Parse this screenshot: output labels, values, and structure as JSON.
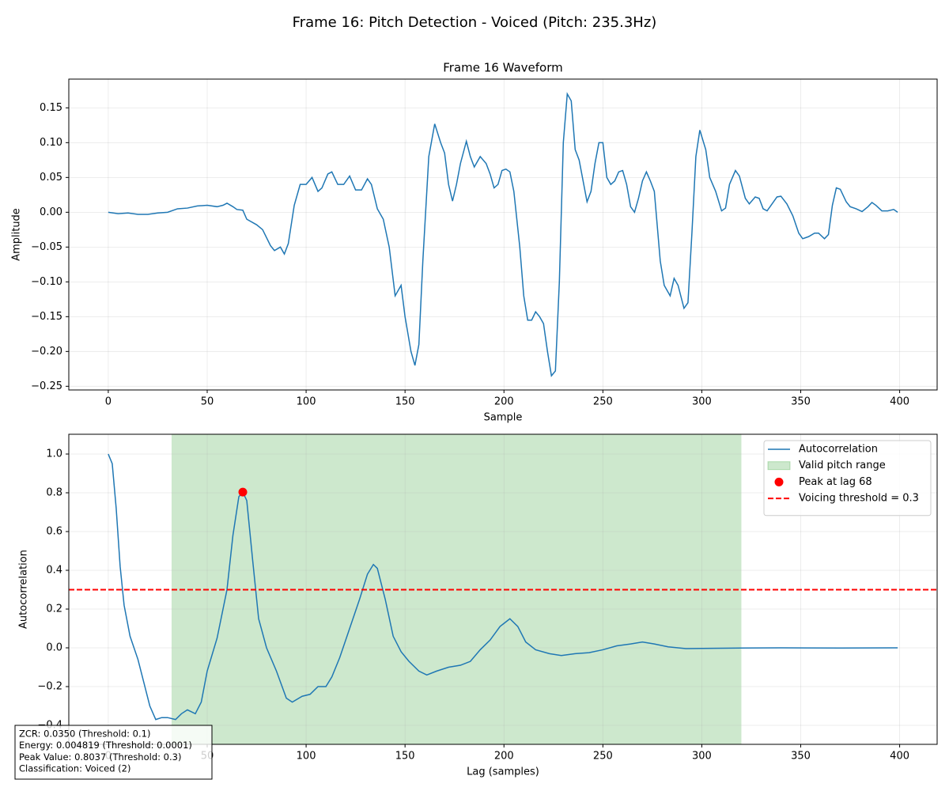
{
  "title": "Frame 16: Pitch Detection - Voiced (Pitch: 235.3Hz)",
  "chart_data": [
    {
      "type": "line",
      "title": "Frame 16 Waveform",
      "xlabel": "Sample",
      "ylabel": "Amplitude",
      "color": "#1f77b4",
      "grid": true,
      "xlim": [
        -19.95,
        418.95
      ],
      "ylim": [
        -0.2553,
        0.1913
      ],
      "xticks": [
        0,
        50,
        100,
        150,
        200,
        250,
        300,
        350,
        400
      ],
      "yticks": [
        {
          "value": -0.25,
          "label": "−0.25"
        },
        {
          "value": -0.2,
          "label": "−0.20"
        },
        {
          "value": -0.15,
          "label": "−0.15"
        },
        {
          "value": -0.1,
          "label": "−0.10"
        },
        {
          "value": -0.05,
          "label": "−0.05"
        },
        {
          "value": 0,
          "label": "0.00"
        },
        {
          "value": 0.05,
          "label": "0.05"
        },
        {
          "value": 0.1,
          "label": "0.10"
        },
        {
          "value": 0.15,
          "label": "0.15"
        }
      ],
      "x": [
        0,
        5,
        10,
        15,
        20,
        25,
        30,
        35,
        40,
        45,
        50,
        55,
        58,
        60,
        63,
        65,
        68,
        70,
        75,
        78,
        82,
        84,
        87,
        89,
        91,
        94,
        97,
        100,
        103,
        106,
        108,
        111,
        113,
        116,
        119,
        122,
        125,
        128,
        131,
        133,
        136,
        139,
        142,
        145,
        148,
        150,
        153,
        155,
        157,
        159,
        162,
        165,
        168,
        170,
        172,
        174,
        176,
        178,
        181,
        183,
        185,
        188,
        191,
        193,
        195,
        197,
        199,
        201,
        203,
        205,
        208,
        210,
        212,
        214,
        216,
        218,
        220,
        222,
        224,
        226,
        228,
        230,
        232,
        234,
        236,
        238,
        240,
        242,
        244,
        246,
        248,
        250,
        252,
        254,
        256,
        258,
        260,
        262,
        264,
        266,
        268,
        270,
        272,
        274,
        276,
        279,
        281,
        284,
        286,
        288,
        291,
        293,
        295,
        297,
        299,
        302,
        304,
        307,
        310,
        312,
        314,
        317,
        319,
        322,
        324,
        327,
        329,
        331,
        333,
        335,
        338,
        340,
        343,
        346,
        349,
        351,
        354,
        357,
        359,
        362,
        364,
        366,
        368,
        370,
        373,
        375,
        378,
        381,
        384,
        386,
        388,
        391,
        394,
        397,
        399
      ],
      "values": [
        0,
        -0.002,
        -0.001,
        -0.003,
        -0.003,
        -0.001,
        0,
        0.005,
        0.006,
        0.009,
        0.01,
        0.008,
        0.01,
        0.013,
        0.008,
        0.004,
        0.003,
        -0.01,
        -0.018,
        -0.025,
        -0.048,
        -0.055,
        -0.05,
        -0.06,
        -0.045,
        0.01,
        0.04,
        0.04,
        0.05,
        0.03,
        0.035,
        0.055,
        0.058,
        0.04,
        0.04,
        0.052,
        0.032,
        0.032,
        0.048,
        0.04,
        0.005,
        -0.01,
        -0.05,
        -0.12,
        -0.105,
        -0.15,
        -0.2,
        -0.22,
        -0.19,
        -0.07,
        0.08,
        0.127,
        0.1,
        0.085,
        0.04,
        0.016,
        0.04,
        0.07,
        0.102,
        0.08,
        0.065,
        0.08,
        0.07,
        0.055,
        0.035,
        0.04,
        0.06,
        0.062,
        0.058,
        0.03,
        -0.05,
        -0.12,
        -0.155,
        -0.155,
        -0.143,
        -0.15,
        -0.16,
        -0.2,
        -0.235,
        -0.228,
        -0.1,
        0.1,
        0.17,
        0.16,
        0.09,
        0.075,
        0.045,
        0.015,
        0.03,
        0.07,
        0.1,
        0.1,
        0.05,
        0.04,
        0.045,
        0.058,
        0.06,
        0.04,
        0.008,
        0,
        0.02,
        0.045,
        0.058,
        0.045,
        0.03,
        -0.07,
        -0.105,
        -0.12,
        -0.095,
        -0.105,
        -0.138,
        -0.13,
        -0.03,
        0.08,
        0.118,
        0.09,
        0.05,
        0.03,
        0.002,
        0.006,
        0.04,
        0.06,
        0.052,
        0.02,
        0.012,
        0.022,
        0.02,
        0.005,
        0.002,
        0.01,
        0.022,
        0.023,
        0.012,
        -0.005,
        -0.03,
        -0.038,
        -0.035,
        -0.03,
        -0.03,
        -0.038,
        -0.032,
        0.01,
        0.035,
        0.033,
        0.015,
        0.008,
        0.005,
        0.001,
        0.008,
        0.014,
        0.01,
        0.002,
        0.002,
        0.004,
        0
      ]
    },
    {
      "type": "line",
      "xlabel": "Lag (samples)",
      "ylabel": "Autocorrelation",
      "grid": true,
      "legend": "upper right",
      "xlim": [
        -19.95,
        418.95
      ],
      "ylim": [
        -0.498,
        1.102
      ],
      "xticks": [
        0,
        50,
        100,
        150,
        200,
        250,
        300,
        350,
        400
      ],
      "yticks": [
        {
          "value": -0.4,
          "label": "−0.4"
        },
        {
          "value": -0.2,
          "label": "−0.2"
        },
        {
          "value": 0,
          "label": "0.0"
        },
        {
          "value": 0.2,
          "label": "0.2"
        },
        {
          "value": 0.4,
          "label": "0.4"
        },
        {
          "value": 0.6,
          "label": "0.6"
        },
        {
          "value": 0.8,
          "label": "0.8"
        },
        {
          "value": 1,
          "label": "1.0"
        }
      ],
      "x": [
        0,
        2,
        4,
        6,
        8,
        11,
        15,
        18,
        21,
        24,
        27,
        30,
        34,
        37,
        40,
        44,
        47,
        50,
        55,
        60,
        63,
        66,
        68,
        70,
        73,
        76,
        80,
        85,
        90,
        93,
        98,
        102,
        106,
        110,
        113,
        117,
        122,
        127,
        131,
        134,
        136,
        140,
        144,
        148,
        152,
        157,
        161,
        166,
        172,
        178,
        183,
        188,
        193,
        198,
        203,
        207,
        211,
        216,
        223,
        229,
        236,
        243,
        250,
        257,
        264,
        270,
        276,
        283,
        292,
        300,
        320,
        340,
        370,
        399
      ],
      "series": [
        {
          "name": "Autocorrelation",
          "color": "#1f77b4",
          "values": [
            1.0,
            0.95,
            0.72,
            0.42,
            0.22,
            0.06,
            -0.06,
            -0.18,
            -0.3,
            -0.37,
            -0.36,
            -0.36,
            -0.37,
            -0.34,
            -0.32,
            -0.34,
            -0.28,
            -0.12,
            0.05,
            0.3,
            0.58,
            0.78,
            0.8037,
            0.76,
            0.45,
            0.15,
            0.0,
            -0.12,
            -0.26,
            -0.28,
            -0.25,
            -0.24,
            -0.2,
            -0.2,
            -0.15,
            -0.05,
            0.1,
            0.25,
            0.38,
            0.43,
            0.41,
            0.25,
            0.06,
            -0.02,
            -0.07,
            -0.12,
            -0.14,
            -0.12,
            -0.1,
            -0.09,
            -0.07,
            -0.01,
            0.04,
            0.11,
            0.15,
            0.11,
            0.03,
            -0.01,
            -0.03,
            -0.04,
            -0.03,
            -0.025,
            -0.01,
            0.01,
            0.02,
            0.03,
            0.02,
            0.005,
            -0.004,
            -0.003,
            -0.001,
            0.0,
            -0.001,
            0.0
          ]
        }
      ],
      "span": {
        "name": "Valid pitch range",
        "range": [
          32,
          320
        ],
        "color": "#2ca02c"
      },
      "peak": {
        "name": "Peak at lag 68",
        "x": 68,
        "y": 0.8037,
        "color": "#ff0000"
      },
      "threshold": {
        "name": "Voicing threshold = 0.3",
        "value": 0.3,
        "color": "#ff0000"
      },
      "annotations": [
        "ZCR: 0.0350 (Threshold: 0.1)",
        "Energy: 0.004819 (Threshold: 0.0001)",
        "Peak Value: 0.8037 (Threshold: 0.3)",
        "Classification: Voiced (2)"
      ]
    }
  ]
}
